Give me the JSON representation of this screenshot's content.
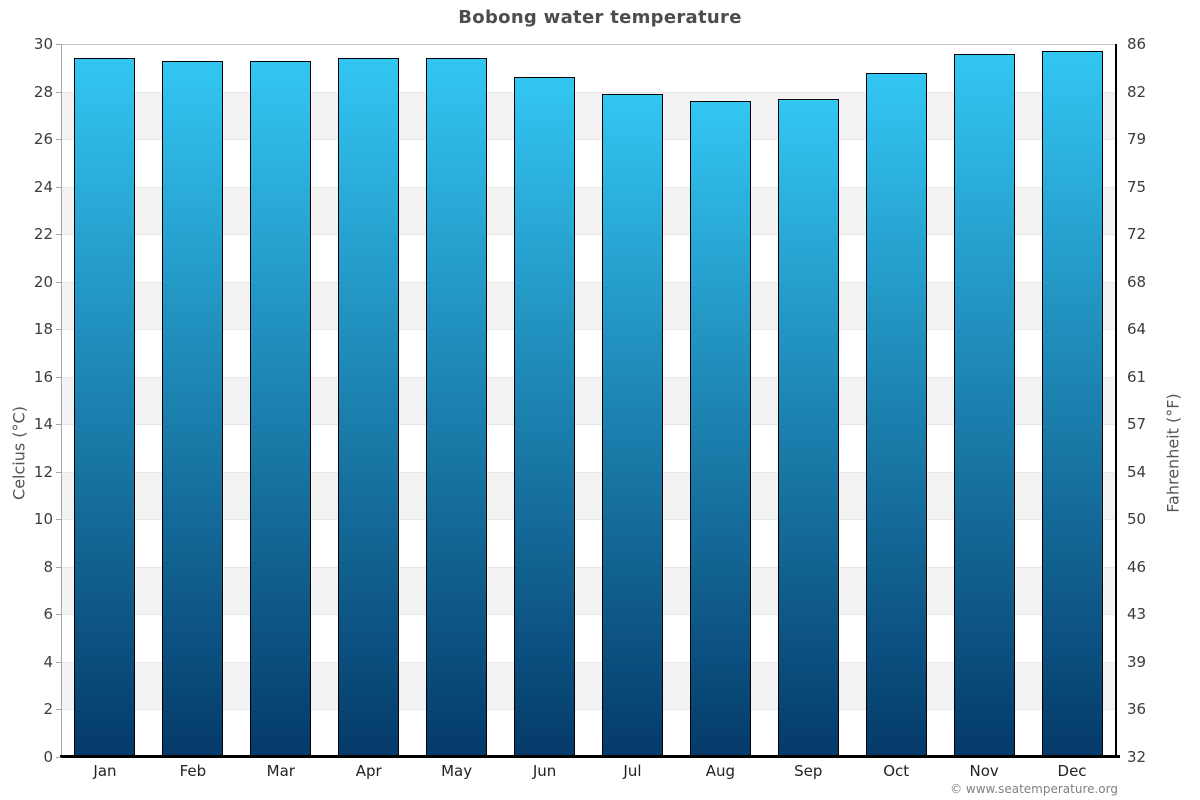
{
  "title": "Bobong water temperature",
  "footer": {
    "copyright": "© www.seatemperature.org"
  },
  "colors": {
    "bar_top": "#33c6f3",
    "bar_bottom": "#043a69",
    "bar_border": "#000000",
    "band_gray": "#f3f3f3",
    "title_text": "#4d4d4d",
    "axis_text": "#3c3c3c"
  },
  "chart_data": {
    "type": "bar",
    "title": "Bobong water temperature",
    "categories": [
      "Jan",
      "Feb",
      "Mar",
      "Apr",
      "May",
      "Jun",
      "Jul",
      "Aug",
      "Sep",
      "Oct",
      "Nov",
      "Dec"
    ],
    "values": [
      29.4,
      29.3,
      29.3,
      29.4,
      29.4,
      28.6,
      27.9,
      27.6,
      27.7,
      28.8,
      29.6,
      29.7
    ],
    "series_unit": "°C",
    "ylabel_left": "Celcius (°C)",
    "ylabel_right": "Fahrenheit (°F)",
    "ylim": [
      0,
      30
    ],
    "y_ticks_left": [
      "30",
      "28",
      "26",
      "24",
      "22",
      "20",
      "18",
      "16",
      "14",
      "12",
      "10",
      "8",
      "6",
      "4",
      "2",
      "0"
    ],
    "y_ticks_right": [
      "86",
      "82",
      "79",
      "75",
      "72",
      "68",
      "64",
      "61",
      "57",
      "54",
      "50",
      "46",
      "43",
      "39",
      "36",
      "32"
    ],
    "grid": "alternating-horizontal-bands",
    "legend": "none"
  }
}
